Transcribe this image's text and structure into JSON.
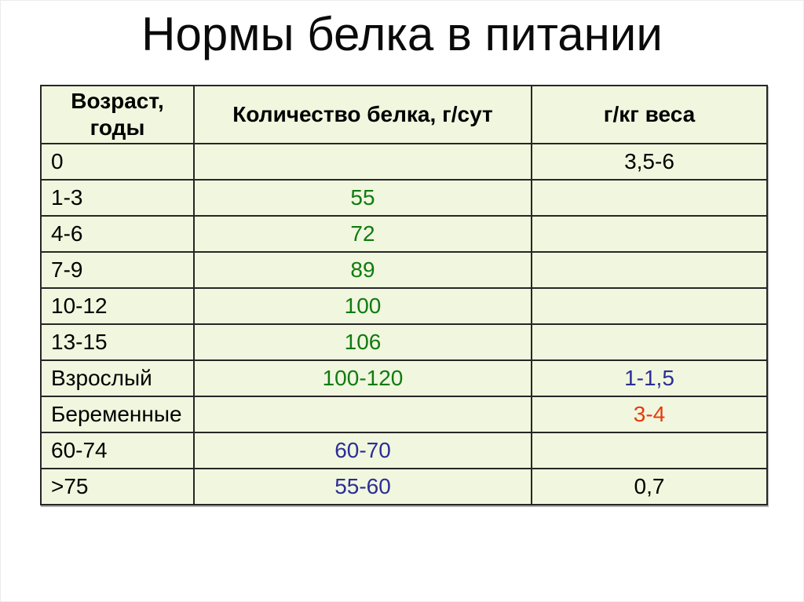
{
  "page_title": "Нормы белка в питании",
  "colors": {
    "cell_bg": "#f0f7de",
    "border": "#262626",
    "black": "#000000",
    "green": "#117a11",
    "blue": "#2d2d96",
    "red": "#e8390e"
  },
  "chart_data": {
    "type": "table",
    "title": "Нормы белка в питании",
    "columns": [
      "Возраст, годы",
      "Количество белка, г/сут",
      "г/кг веса"
    ],
    "rows": [
      {
        "cells": [
          {
            "text": "0",
            "color": "black"
          },
          {
            "text": "",
            "color": "black"
          },
          {
            "text": "3,5-6",
            "color": "black"
          }
        ]
      },
      {
        "cells": [
          {
            "text": "1-3",
            "color": "black"
          },
          {
            "text": "55",
            "color": "green"
          },
          {
            "text": "",
            "color": "black"
          }
        ]
      },
      {
        "cells": [
          {
            "text": "4-6",
            "color": "black"
          },
          {
            "text": "72",
            "color": "green"
          },
          {
            "text": "",
            "color": "black"
          }
        ]
      },
      {
        "cells": [
          {
            "text": "7-9",
            "color": "black"
          },
          {
            "text": "89",
            "color": "green"
          },
          {
            "text": "",
            "color": "black"
          }
        ]
      },
      {
        "cells": [
          {
            "text": "10-12",
            "color": "black"
          },
          {
            "text": "100",
            "color": "green"
          },
          {
            "text": "",
            "color": "black"
          }
        ]
      },
      {
        "cells": [
          {
            "text": "13-15",
            "color": "black"
          },
          {
            "text": "106",
            "color": "green"
          },
          {
            "text": "",
            "color": "black"
          }
        ]
      },
      {
        "cells": [
          {
            "text": "Взрослый",
            "color": "black"
          },
          {
            "text": "100-120",
            "color": "green"
          },
          {
            "text": "1-1,5",
            "color": "blue"
          }
        ]
      },
      {
        "cells": [
          {
            "text": "Беременные",
            "color": "black"
          },
          {
            "text": "",
            "color": "black"
          },
          {
            "text": "3-4",
            "color": "red"
          }
        ]
      },
      {
        "cells": [
          {
            "text": "60-74",
            "color": "black"
          },
          {
            "text": "60-70",
            "color": "blue"
          },
          {
            "text": "",
            "color": "black"
          }
        ]
      },
      {
        "cells": [
          {
            "text": ">75",
            "color": "black"
          },
          {
            "text": "55-60",
            "color": "blue"
          },
          {
            "text": "0,7",
            "color": "black"
          }
        ]
      }
    ]
  },
  "cell_names": [
    "cell-age",
    "cell-protein-per-day",
    "cell-protein-per-kg"
  ]
}
